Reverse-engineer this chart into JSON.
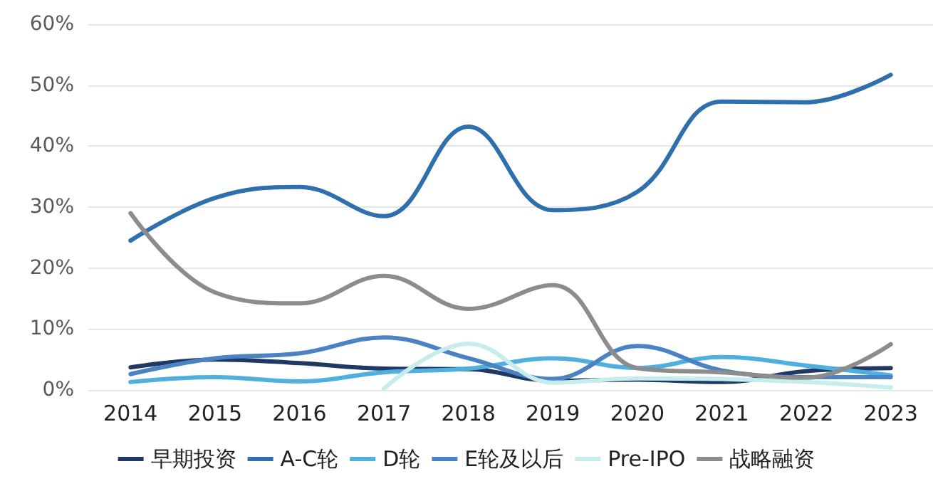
{
  "chart_data": {
    "type": "line",
    "categories": [
      "2014",
      "2015",
      "2016",
      "2017",
      "2018",
      "2019",
      "2020",
      "2021",
      "2022",
      "2023"
    ],
    "series": [
      {
        "name": "早期投资",
        "color": "#1f3864",
        "values": [
          3.7,
          5.0,
          4.4,
          3.5,
          3.4,
          1.5,
          1.7,
          1.3,
          3.1,
          3.6
        ]
      },
      {
        "name": "A-C轮",
        "color": "#2e6fad",
        "values": [
          24.5,
          31.5,
          33.3,
          28.5,
          43.2,
          29.5,
          32.5,
          47.3,
          47.2,
          51.7
        ]
      },
      {
        "name": "D轮",
        "color": "#4fb0e0",
        "values": [
          1.3,
          2.1,
          1.4,
          2.9,
          3.5,
          5.2,
          3.6,
          5.4,
          4.0,
          2.4
        ]
      },
      {
        "name": "E轮及以后",
        "color": "#4a82c4",
        "values": [
          2.6,
          5.2,
          6.0,
          8.6,
          5.2,
          1.8,
          7.2,
          3.2,
          2.1,
          2.1
        ]
      },
      {
        "name": "Pre-IPO",
        "color": "#c6ecec",
        "values": [
          null,
          null,
          null,
          0.2,
          7.6,
          1.2,
          1.9,
          1.8,
          1.3,
          0.4
        ]
      },
      {
        "name": "战略融资",
        "color": "#8c8c8c",
        "values": [
          29,
          16,
          14.2,
          18.7,
          13.3,
          17.2,
          3.6,
          2.9,
          2.0,
          7.5
        ]
      }
    ],
    "ylim": [
      0,
      60
    ],
    "yticks": [
      {
        "value": 0,
        "label": "0%"
      },
      {
        "value": 10,
        "label": "10%"
      },
      {
        "value": 20,
        "label": "20%"
      },
      {
        "value": 30,
        "label": "30%"
      },
      {
        "value": 40,
        "label": "40%"
      },
      {
        "value": 50,
        "label": "50%"
      },
      {
        "value": 60,
        "label": "60%"
      }
    ],
    "grid": "y",
    "legend": "bottom",
    "marker": "none",
    "line_style": "solid"
  }
}
